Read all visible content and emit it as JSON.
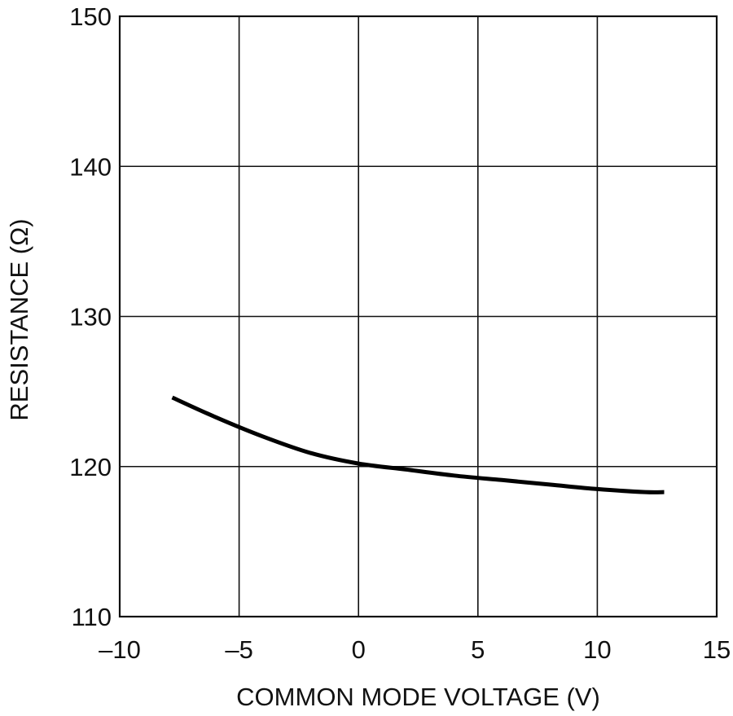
{
  "chart_data": {
    "type": "line",
    "title": "",
    "xlabel": "COMMON MODE VOLTAGE (V)",
    "ylabel": "RESISTANCE (Ω)",
    "xlim": [
      -10,
      15
    ],
    "ylim": [
      110,
      150
    ],
    "x_ticks": [
      -10,
      -5,
      0,
      5,
      10,
      15
    ],
    "x_tick_labels": [
      "–10",
      "–5",
      "0",
      "5",
      "10",
      "15"
    ],
    "y_ticks": [
      110,
      120,
      130,
      140,
      150
    ],
    "y_tick_labels": [
      "110",
      "120",
      "130",
      "140",
      "150"
    ],
    "grid": true,
    "legend": "none",
    "series": [
      {
        "x": [
          -7.8,
          -6,
          -4,
          -2,
          0,
          2,
          4,
          6,
          8,
          10,
          12,
          12.8
        ],
        "y": [
          124.6,
          123.3,
          122.0,
          120.9,
          120.2,
          119.8,
          119.4,
          119.1,
          118.8,
          118.5,
          118.3,
          118.3
        ]
      }
    ]
  }
}
